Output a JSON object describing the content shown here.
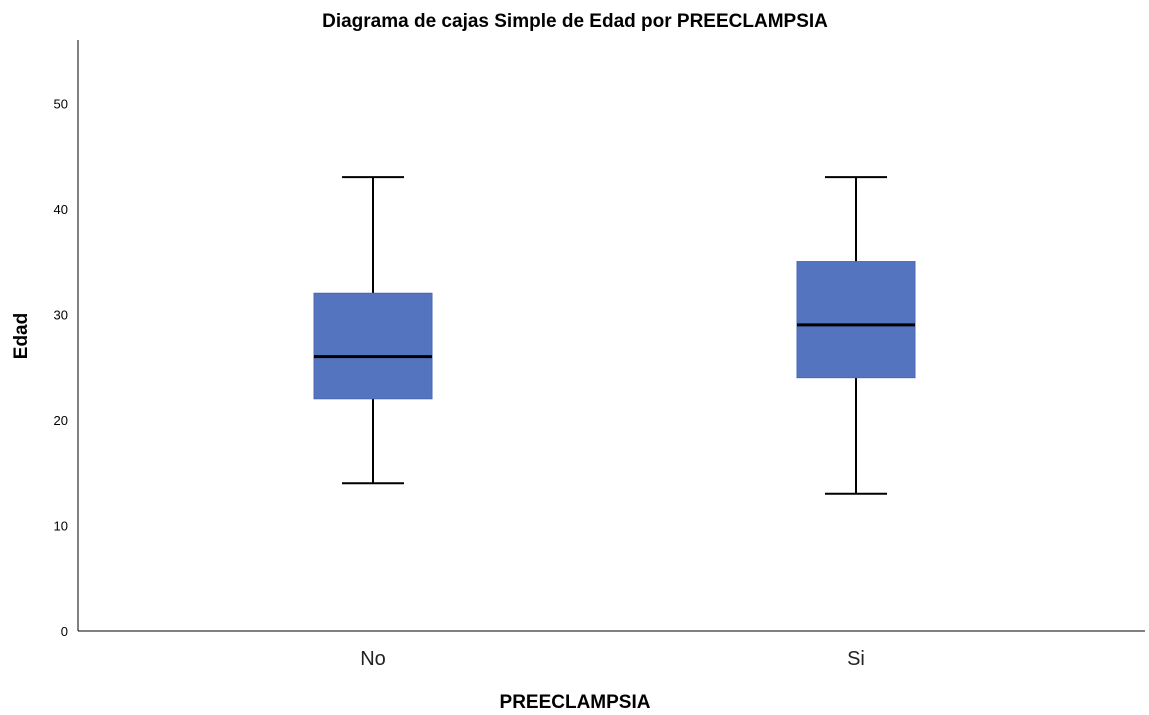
{
  "chart_data": {
    "type": "boxplot",
    "title": "Diagrama de cajas Simple de Edad por PREECLAMPSIA",
    "xlabel": "PREECLAMPSIA",
    "ylabel": "Edad",
    "ylim": [
      0,
      56
    ],
    "yticks": [
      "0",
      "10",
      "20",
      "30",
      "40",
      "50"
    ],
    "grid": false,
    "box_color": "#5574bf",
    "categories": [
      "No",
      "Si"
    ],
    "boxes": [
      {
        "category": "No",
        "min": 14,
        "q1": 22,
        "median": 26,
        "q3": 32,
        "max": 43
      },
      {
        "category": "Si",
        "min": 13,
        "q1": 24,
        "median": 29,
        "q3": 35,
        "max": 43
      }
    ]
  }
}
